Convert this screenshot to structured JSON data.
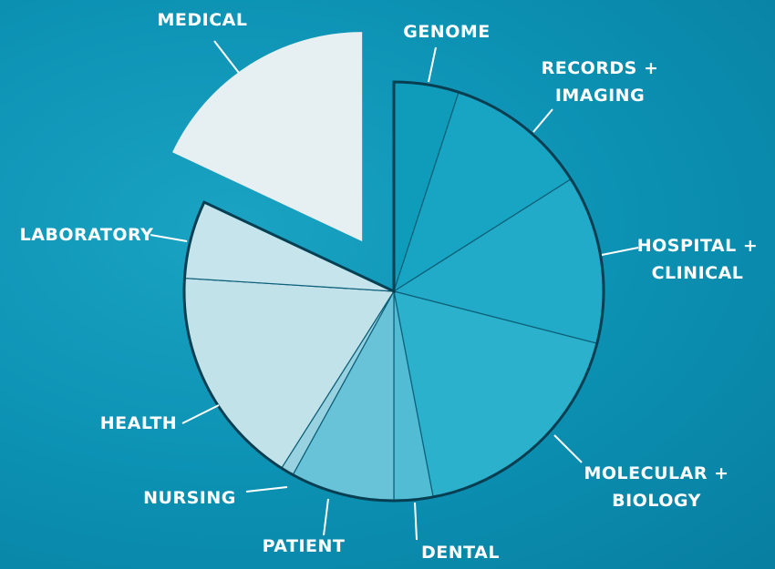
{
  "chart_data": {
    "type": "pie",
    "categories": [
      "GENOME",
      "RECORDS + IMAGING",
      "HOSPITAL + CLINICAL",
      "MOLECULAR + BIOLOGY",
      "DENTAL",
      "PATIENT",
      "NURSING",
      "HEALTH",
      "LABORATORY",
      "MEDICAL"
    ],
    "values": [
      5,
      11,
      13,
      18,
      3,
      8,
      1,
      17,
      6,
      18
    ],
    "colors": [
      "#0f9cba",
      "#18a5c3",
      "#21abc8",
      "#2bb1cc",
      "#52bcd5",
      "#68c3d8",
      "#98d2e0",
      "#c2e2ea",
      "#c6e4ec",
      "#e6eff2"
    ]
  }
}
